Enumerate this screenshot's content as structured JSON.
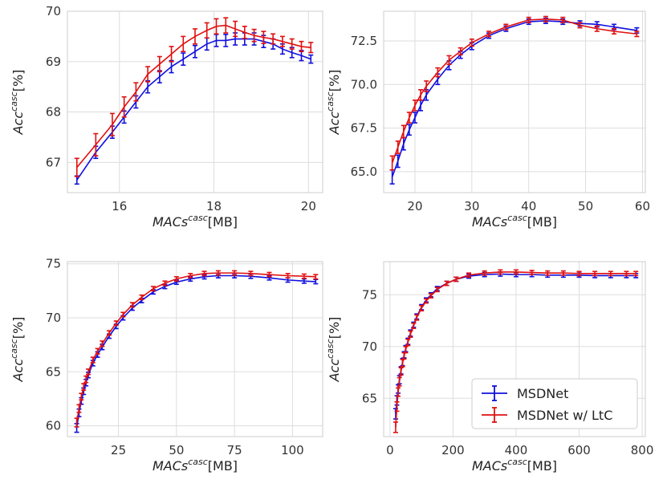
{
  "chart_data": [
    {
      "type": "line",
      "xlabel": {
        "main": "MACs",
        "sup": "casc",
        "unit": "[MB]"
      },
      "ylabel": {
        "main": "Acc",
        "sup": "casc",
        "unit": "[%]"
      },
      "xlim": [
        14.9,
        20.3
      ],
      "ylim": [
        66.4,
        70.0
      ],
      "xticks": [
        16,
        18,
        20
      ],
      "yticks": [
        67,
        68,
        69,
        70
      ],
      "grid": true,
      "series": [
        {
          "name": "MSDNet",
          "color": "#1010dd",
          "x": [
            15.1,
            15.5,
            15.85,
            16.1,
            16.35,
            16.6,
            16.85,
            17.1,
            17.35,
            17.6,
            17.85,
            18.05,
            18.25,
            18.45,
            18.65,
            18.85,
            19.05,
            19.25,
            19.45,
            19.65,
            19.85,
            20.05
          ],
          "y": [
            66.65,
            67.2,
            67.6,
            67.9,
            68.2,
            68.5,
            68.7,
            68.9,
            69.05,
            69.2,
            69.35,
            69.42,
            69.42,
            69.45,
            69.45,
            69.45,
            69.4,
            69.35,
            69.25,
            69.18,
            69.12,
            69.05
          ],
          "err": [
            0.08,
            0.12,
            0.12,
            0.12,
            0.12,
            0.12,
            0.12,
            0.12,
            0.12,
            0.12,
            0.12,
            0.12,
            0.12,
            0.12,
            0.12,
            0.12,
            0.12,
            0.1,
            0.1,
            0.1,
            0.1,
            0.08
          ]
        },
        {
          "name": "MSDNet w/ LtC",
          "color": "#e01010",
          "x": [
            15.1,
            15.5,
            15.85,
            16.1,
            16.35,
            16.6,
            16.85,
            17.1,
            17.35,
            17.6,
            17.85,
            18.05,
            18.25,
            18.45,
            18.65,
            18.85,
            19.05,
            19.25,
            19.45,
            19.65,
            19.85,
            20.05
          ],
          "y": [
            66.9,
            67.35,
            67.75,
            68.1,
            68.4,
            68.75,
            68.95,
            69.15,
            69.35,
            69.5,
            69.62,
            69.7,
            69.72,
            69.65,
            69.58,
            69.52,
            69.48,
            69.45,
            69.4,
            69.35,
            69.3,
            69.28
          ],
          "err": [
            0.18,
            0.22,
            0.22,
            0.2,
            0.18,
            0.15,
            0.15,
            0.15,
            0.15,
            0.15,
            0.15,
            0.15,
            0.15,
            0.15,
            0.12,
            0.12,
            0.12,
            0.1,
            0.1,
            0.1,
            0.1,
            0.1
          ]
        }
      ]
    },
    {
      "type": "line",
      "xlabel": {
        "main": "MACs",
        "sup": "casc",
        "unit": "[MB]"
      },
      "ylabel": {
        "main": "Acc",
        "sup": "casc",
        "unit": "[%]"
      },
      "xlim": [
        14.5,
        60.5
      ],
      "ylim": [
        63.8,
        74.2
      ],
      "xticks": [
        20,
        30,
        40,
        50,
        60
      ],
      "yticks": [
        65.0,
        67.5,
        70.0,
        72.5
      ],
      "yticklabels": [
        "65.0",
        "67.5",
        "70.0",
        "72.5"
      ],
      "grid": true,
      "series": [
        {
          "name": "MSDNet",
          "color": "#1010dd",
          "x": [
            16,
            17,
            18,
            19,
            20,
            21,
            22,
            24,
            26,
            28,
            30,
            33,
            36,
            40,
            43,
            46,
            49,
            52,
            55,
            59
          ],
          "y": [
            64.7,
            65.6,
            66.6,
            67.4,
            68.1,
            68.8,
            69.4,
            70.3,
            71.1,
            71.7,
            72.2,
            72.8,
            73.2,
            73.6,
            73.65,
            73.6,
            73.5,
            73.45,
            73.3,
            73.1
          ],
          "err": [
            0.4,
            0.35,
            0.35,
            0.3,
            0.3,
            0.3,
            0.3,
            0.3,
            0.25,
            0.2,
            0.2,
            0.15,
            0.15,
            0.15,
            0.15,
            0.15,
            0.15,
            0.15,
            0.15,
            0.15
          ]
        },
        {
          "name": "MSDNet w/ LtC",
          "color": "#e01010",
          "x": [
            16,
            17,
            18,
            19,
            20,
            21,
            22,
            24,
            26,
            28,
            30,
            33,
            36,
            40,
            43,
            46,
            49,
            52,
            55,
            59
          ],
          "y": [
            65.5,
            66.4,
            67.3,
            68.1,
            68.8,
            69.4,
            69.9,
            70.7,
            71.4,
            71.9,
            72.4,
            72.9,
            73.3,
            73.7,
            73.75,
            73.7,
            73.4,
            73.2,
            73.05,
            72.9
          ],
          "err": [
            0.4,
            0.35,
            0.35,
            0.3,
            0.3,
            0.3,
            0.3,
            0.25,
            0.25,
            0.2,
            0.2,
            0.15,
            0.15,
            0.15,
            0.15,
            0.15,
            0.15,
            0.15,
            0.15,
            0.15
          ]
        }
      ]
    },
    {
      "type": "line",
      "xlabel": {
        "main": "MACs",
        "sup": "casc",
        "unit": "[MB]"
      },
      "ylabel": {
        "main": "Acc",
        "sup": "casc",
        "unit": "[%]"
      },
      "xlim": [
        3,
        113
      ],
      "ylim": [
        59.0,
        75.2
      ],
      "xticks": [
        25,
        50,
        75,
        100
      ],
      "yticks": [
        60,
        65,
        70,
        75
      ],
      "grid": true,
      "series": [
        {
          "name": "MSDNet",
          "color": "#1010dd",
          "x": [
            7,
            8,
            9,
            10,
            11,
            12,
            14,
            16,
            18,
            21,
            24,
            27,
            31,
            35,
            40,
            45,
            50,
            56,
            62,
            68,
            75,
            82,
            90,
            98,
            105,
            110
          ],
          "y": [
            59.8,
            61.2,
            62.3,
            63.2,
            64.0,
            64.7,
            65.8,
            66.6,
            67.3,
            68.3,
            69.2,
            70.0,
            70.9,
            71.6,
            72.4,
            72.9,
            73.3,
            73.6,
            73.8,
            73.9,
            73.9,
            73.85,
            73.7,
            73.5,
            73.4,
            73.35
          ],
          "err": [
            0.4,
            0.35,
            0.3,
            0.3,
            0.3,
            0.25,
            0.25,
            0.25,
            0.25,
            0.2,
            0.2,
            0.2,
            0.2,
            0.2,
            0.2,
            0.2,
            0.2,
            0.2,
            0.2,
            0.2,
            0.2,
            0.2,
            0.2,
            0.2,
            0.2,
            0.2
          ]
        },
        {
          "name": "MSDNet w/ LtC",
          "color": "#e01010",
          "x": [
            7,
            8,
            9,
            10,
            11,
            12,
            14,
            16,
            18,
            21,
            24,
            27,
            31,
            35,
            40,
            45,
            50,
            56,
            62,
            68,
            75,
            82,
            90,
            98,
            105,
            110
          ],
          "y": [
            60.3,
            61.6,
            62.7,
            63.6,
            64.3,
            65.0,
            66.1,
            66.9,
            67.6,
            68.6,
            69.5,
            70.3,
            71.2,
            71.9,
            72.7,
            73.2,
            73.6,
            73.9,
            74.1,
            74.15,
            74.15,
            74.1,
            74.0,
            73.9,
            73.85,
            73.8
          ],
          "err": [
            0.4,
            0.35,
            0.3,
            0.3,
            0.3,
            0.25,
            0.25,
            0.25,
            0.25,
            0.2,
            0.2,
            0.2,
            0.2,
            0.2,
            0.2,
            0.2,
            0.2,
            0.2,
            0.2,
            0.2,
            0.2,
            0.2,
            0.2,
            0.2,
            0.2,
            0.2
          ]
        }
      ]
    },
    {
      "type": "line",
      "xlabel": {
        "main": "MACs",
        "sup": "casc",
        "unit": "[MB]"
      },
      "ylabel": {
        "main": "Acc",
        "sup": "casc",
        "unit": "[%]"
      },
      "xlim": [
        -20,
        810
      ],
      "ylim": [
        61.3,
        78.2
      ],
      "xticks": [
        0,
        200,
        400,
        600,
        800
      ],
      "yticks": [
        65,
        70,
        75
      ],
      "grid": true,
      "legend": {
        "position": "lower-right",
        "entries": [
          "MSDNet",
          "MSDNet w/ LtC"
        ]
      },
      "series": [
        {
          "name": "MSDNet",
          "color": "#1010dd",
          "x": [
            18,
            22,
            26,
            30,
            35,
            40,
            45,
            50,
            57,
            65,
            75,
            85,
            100,
            115,
            130,
            150,
            180,
            210,
            250,
            300,
            350,
            400,
            450,
            500,
            550,
            600,
            650,
            700,
            750,
            780
          ],
          "y": [
            63.5,
            64.8,
            65.9,
            66.8,
            67.7,
            68.5,
            69.2,
            69.8,
            70.5,
            71.3,
            72.1,
            72.9,
            73.8,
            74.5,
            75.0,
            75.6,
            76.1,
            76.5,
            76.8,
            76.95,
            77.0,
            76.95,
            76.95,
            76.9,
            76.9,
            76.9,
            76.85,
            76.85,
            76.85,
            76.85
          ],
          "err": [
            0.5,
            0.45,
            0.4,
            0.4,
            0.35,
            0.35,
            0.3,
            0.3,
            0.3,
            0.3,
            0.25,
            0.25,
            0.25,
            0.2,
            0.2,
            0.2,
            0.2,
            0.2,
            0.2,
            0.2,
            0.2,
            0.2,
            0.2,
            0.2,
            0.2,
            0.2,
            0.2,
            0.2,
            0.2,
            0.2
          ]
        },
        {
          "name": "MSDNet w/ LtC",
          "color": "#e01010",
          "x": [
            18,
            22,
            26,
            30,
            35,
            40,
            45,
            50,
            57,
            65,
            75,
            85,
            100,
            115,
            130,
            150,
            180,
            210,
            250,
            300,
            350,
            400,
            450,
            500,
            550,
            600,
            650,
            700,
            750,
            780
          ],
          "y": [
            62.2,
            64.2,
            65.6,
            66.6,
            67.6,
            68.4,
            69.1,
            69.7,
            70.4,
            71.2,
            72.0,
            72.8,
            73.7,
            74.4,
            74.9,
            75.5,
            76.1,
            76.5,
            76.9,
            77.1,
            77.2,
            77.2,
            77.15,
            77.1,
            77.1,
            77.05,
            77.05,
            77.05,
            77.05,
            77.05
          ],
          "err": [
            0.5,
            0.45,
            0.4,
            0.4,
            0.35,
            0.35,
            0.3,
            0.3,
            0.3,
            0.3,
            0.25,
            0.25,
            0.25,
            0.2,
            0.2,
            0.2,
            0.2,
            0.2,
            0.2,
            0.2,
            0.2,
            0.2,
            0.2,
            0.2,
            0.2,
            0.2,
            0.2,
            0.2,
            0.2,
            0.2
          ]
        }
      ]
    }
  ]
}
